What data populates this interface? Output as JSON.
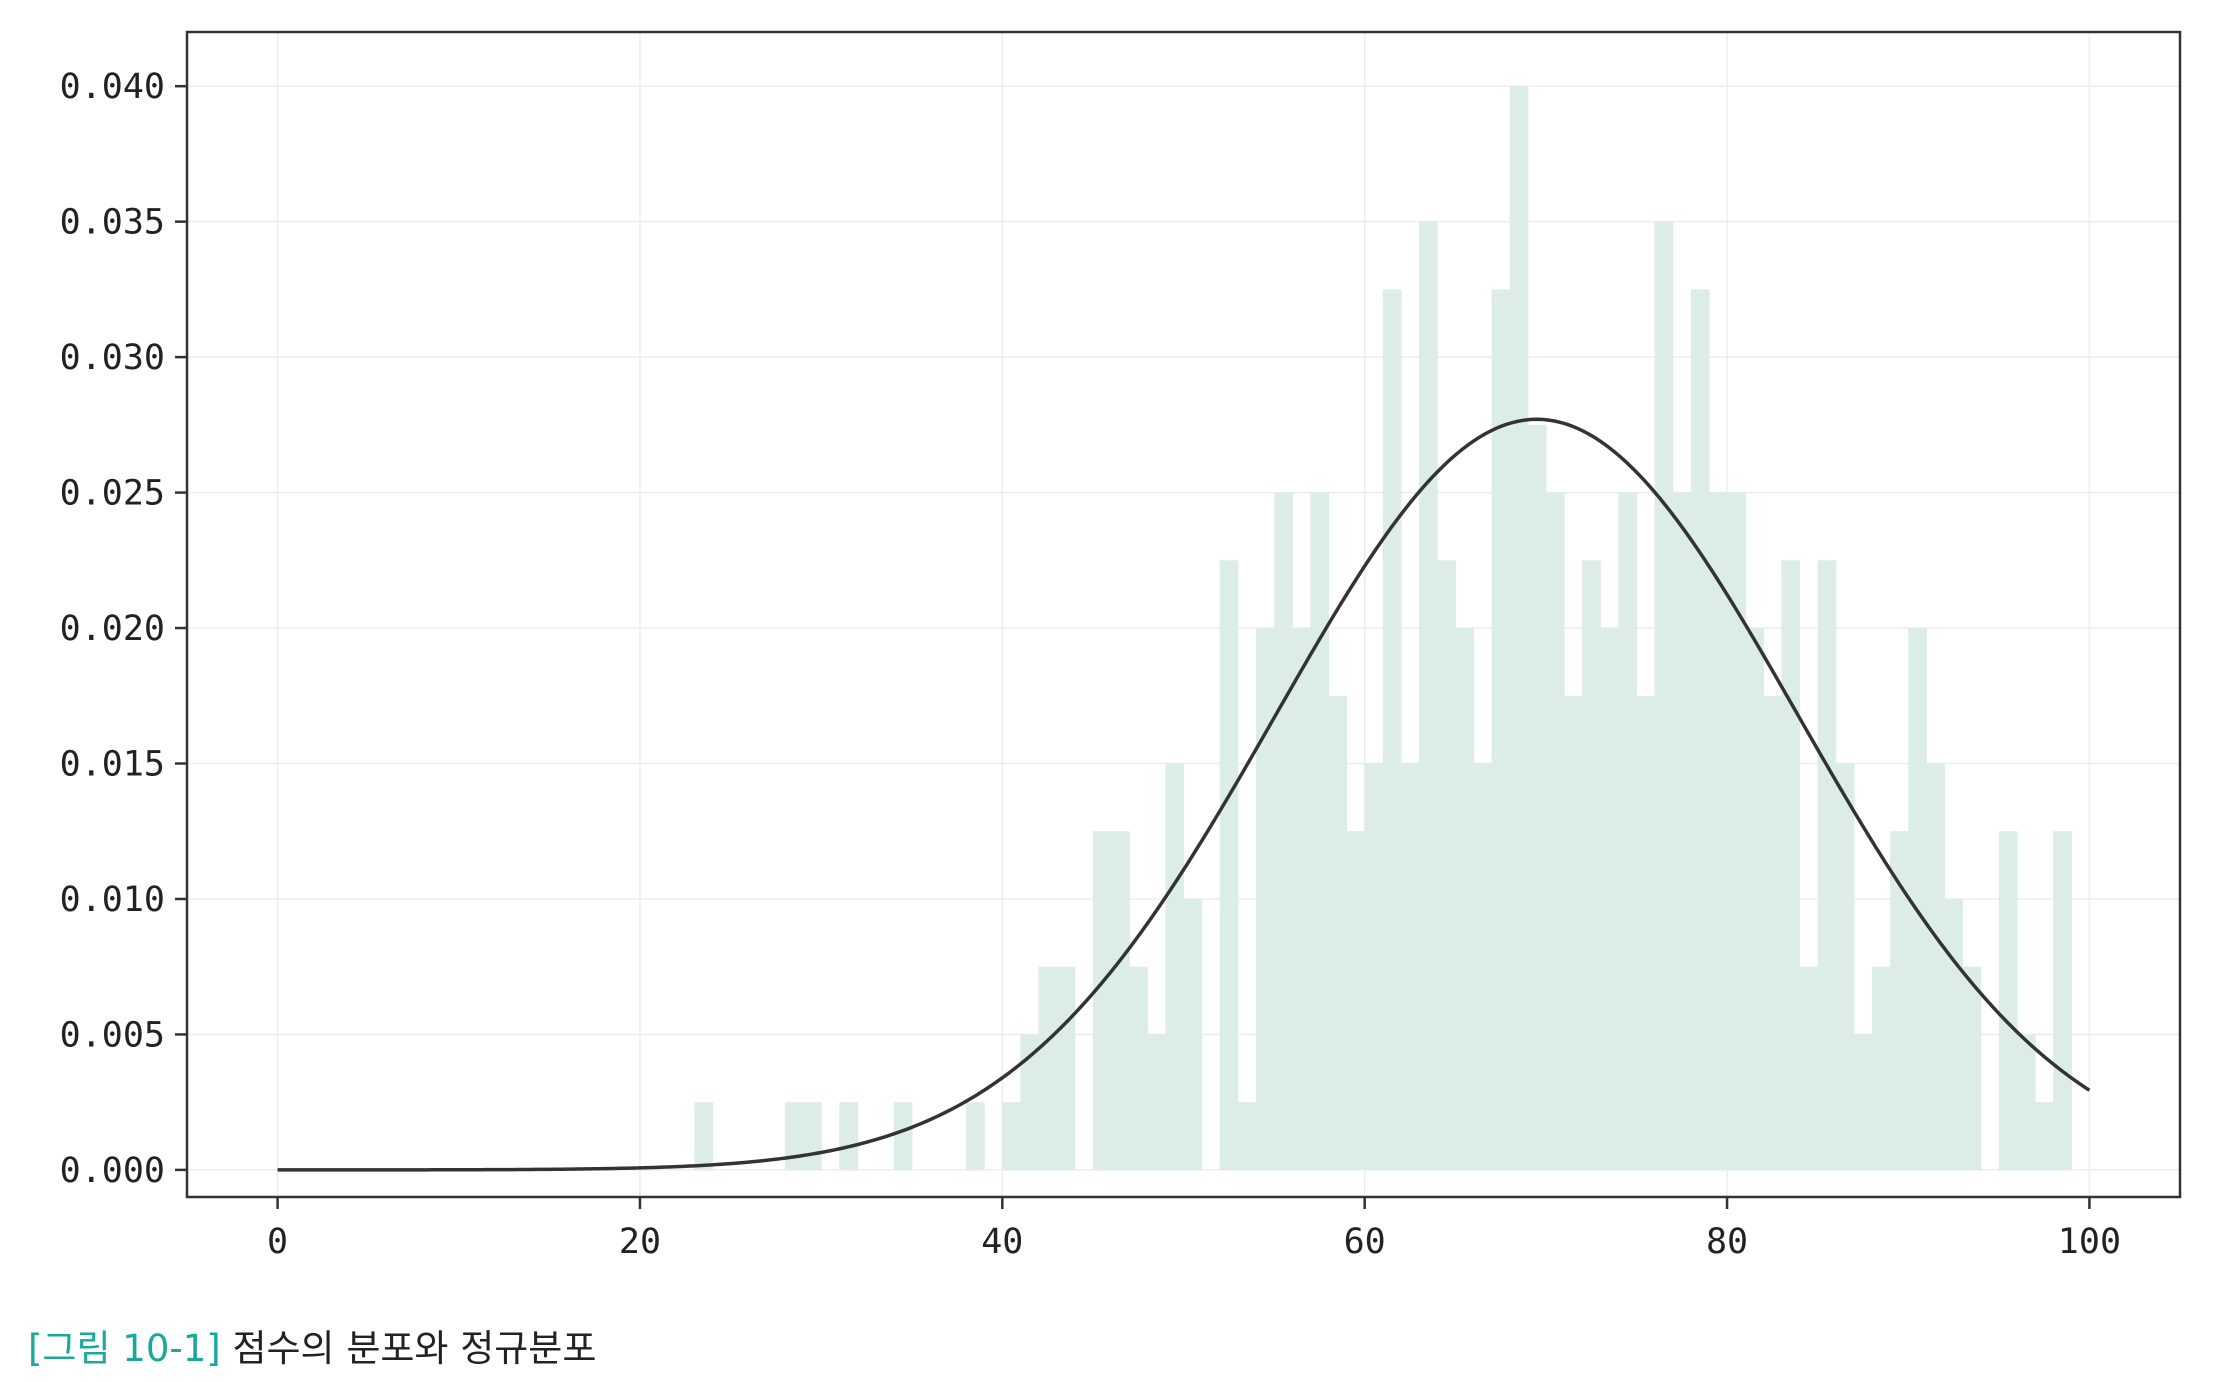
{
  "chart_data": {
    "type": "bar",
    "subtype": "histogram-with-density-curve",
    "bin_width": 1,
    "xlim": [
      -5,
      105
    ],
    "ylim": [
      -0.001,
      0.042
    ],
    "xticks": [
      "0",
      "20",
      "40",
      "60",
      "80",
      "100"
    ],
    "yticks": [
      "0.000",
      "0.005",
      "0.010",
      "0.015",
      "0.020",
      "0.025",
      "0.030",
      "0.035",
      "0.040"
    ],
    "grid": true,
    "legend": "none",
    "bar_color": "#dcece8",
    "curve_color": "#333333",
    "histogram": [
      {
        "x": 23,
        "y": 0.0025
      },
      {
        "x": 28,
        "y": 0.0025
      },
      {
        "x": 29,
        "y": 0.0025
      },
      {
        "x": 31,
        "y": 0.0025
      },
      {
        "x": 34,
        "y": 0.0025
      },
      {
        "x": 38,
        "y": 0.0025
      },
      {
        "x": 40,
        "y": 0.0025
      },
      {
        "x": 41,
        "y": 0.005
      },
      {
        "x": 42,
        "y": 0.0075
      },
      {
        "x": 43,
        "y": 0.0075
      },
      {
        "x": 45,
        "y": 0.0125
      },
      {
        "x": 46,
        "y": 0.0125
      },
      {
        "x": 47,
        "y": 0.0075
      },
      {
        "x": 48,
        "y": 0.005
      },
      {
        "x": 49,
        "y": 0.015
      },
      {
        "x": 50,
        "y": 0.01
      },
      {
        "x": 52,
        "y": 0.0225
      },
      {
        "x": 53,
        "y": 0.0025
      },
      {
        "x": 54,
        "y": 0.02
      },
      {
        "x": 55,
        "y": 0.025
      },
      {
        "x": 56,
        "y": 0.02
      },
      {
        "x": 57,
        "y": 0.025
      },
      {
        "x": 58,
        "y": 0.0175
      },
      {
        "x": 59,
        "y": 0.0125
      },
      {
        "x": 60,
        "y": 0.015
      },
      {
        "x": 61,
        "y": 0.0325
      },
      {
        "x": 62,
        "y": 0.015
      },
      {
        "x": 63,
        "y": 0.035
      },
      {
        "x": 64,
        "y": 0.0225
      },
      {
        "x": 65,
        "y": 0.02
      },
      {
        "x": 66,
        "y": 0.015
      },
      {
        "x": 67,
        "y": 0.0325
      },
      {
        "x": 68,
        "y": 0.04
      },
      {
        "x": 69,
        "y": 0.0275
      },
      {
        "x": 70,
        "y": 0.025
      },
      {
        "x": 71,
        "y": 0.0175
      },
      {
        "x": 72,
        "y": 0.0225
      },
      {
        "x": 73,
        "y": 0.02
      },
      {
        "x": 74,
        "y": 0.025
      },
      {
        "x": 75,
        "y": 0.0175
      },
      {
        "x": 76,
        "y": 0.035
      },
      {
        "x": 77,
        "y": 0.025
      },
      {
        "x": 78,
        "y": 0.0325
      },
      {
        "x": 79,
        "y": 0.025
      },
      {
        "x": 80,
        "y": 0.025
      },
      {
        "x": 81,
        "y": 0.02
      },
      {
        "x": 82,
        "y": 0.0175
      },
      {
        "x": 83,
        "y": 0.0225
      },
      {
        "x": 84,
        "y": 0.0075
      },
      {
        "x": 85,
        "y": 0.0225
      },
      {
        "x": 86,
        "y": 0.015
      },
      {
        "x": 87,
        "y": 0.005
      },
      {
        "x": 88,
        "y": 0.0075
      },
      {
        "x": 89,
        "y": 0.0125
      },
      {
        "x": 90,
        "y": 0.02
      },
      {
        "x": 91,
        "y": 0.015
      },
      {
        "x": 92,
        "y": 0.01
      },
      {
        "x": 93,
        "y": 0.0075
      },
      {
        "x": 95,
        "y": 0.0125
      },
      {
        "x": 96,
        "y": 0.005
      },
      {
        "x": 97,
        "y": 0.0025
      },
      {
        "x": 98,
        "y": 0.0125
      }
    ],
    "normal_curve": {
      "mean": 69.5,
      "std": 14.4,
      "x_range": [
        0,
        100
      ]
    }
  },
  "caption": {
    "figure_number": "[그림 10-1]",
    "text": "점수의 분포와 정규분포"
  }
}
